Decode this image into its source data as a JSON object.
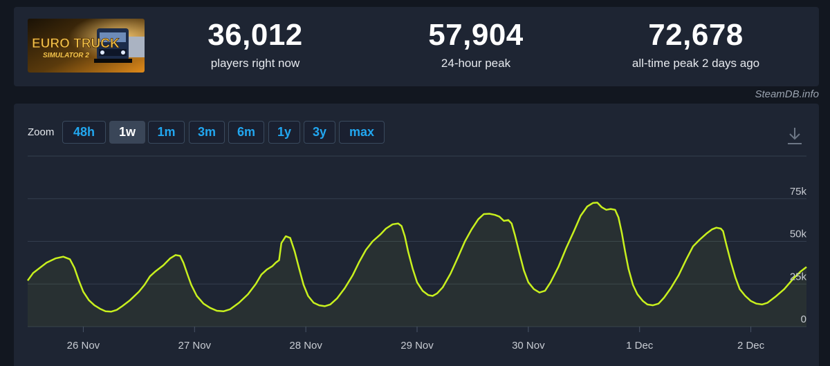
{
  "game": {
    "logo_text_line1": "EURO TRUCK",
    "logo_text_line2": "SIMULATOR 2"
  },
  "stats": [
    {
      "value": "36,012",
      "label": "players right now"
    },
    {
      "value": "57,904",
      "label": "24-hour peak"
    },
    {
      "value": "72,678",
      "label": "all-time peak 2 days ago"
    }
  ],
  "source_label": "SteamDB.info",
  "zoom": {
    "label": "Zoom",
    "options": [
      "48h",
      "1w",
      "1m",
      "3m",
      "6m",
      "1y",
      "3y",
      "max"
    ],
    "active": "1w"
  },
  "colors": {
    "line": "#c8f01e",
    "accent": "#22a7f0",
    "panel": "#1e2533",
    "background": "#121720"
  },
  "icons": {
    "download": "download-icon"
  },
  "chart_data": {
    "type": "line",
    "title": "",
    "xlabel": "",
    "ylabel": "",
    "x_ticks": [
      "26 Nov",
      "27 Nov",
      "28 Nov",
      "29 Nov",
      "30 Nov",
      "1 Dec",
      "2 Dec"
    ],
    "y_ticks": [
      "0",
      "25k",
      "50k",
      "75k"
    ],
    "ylim": [
      0,
      100000
    ],
    "x_unit": "days from 26 Nov 00:00",
    "xlim": [
      -0.5,
      6.5
    ],
    "grid": true,
    "series": [
      {
        "name": "",
        "points": [
          [
            -0.5,
            27000
          ],
          [
            -0.45,
            31500
          ],
          [
            -0.4,
            34000
          ],
          [
            -0.33,
            37500
          ],
          [
            -0.25,
            40000
          ],
          [
            -0.18,
            41000
          ],
          [
            -0.12,
            39500
          ],
          [
            -0.08,
            34500
          ],
          [
            -0.04,
            27000
          ],
          [
            0,
            20500
          ],
          [
            0.05,
            15500
          ],
          [
            0.1,
            12500
          ],
          [
            0.15,
            10500
          ],
          [
            0.2,
            9000
          ],
          [
            0.25,
            8800
          ],
          [
            0.3,
            9800
          ],
          [
            0.35,
            12000
          ],
          [
            0.42,
            15500
          ],
          [
            0.5,
            20500
          ],
          [
            0.55,
            24500
          ],
          [
            0.6,
            29500
          ],
          [
            0.65,
            32500
          ],
          [
            0.72,
            36000
          ],
          [
            0.78,
            40000
          ],
          [
            0.83,
            42000
          ],
          [
            0.87,
            41500
          ],
          [
            0.9,
            37500
          ],
          [
            0.94,
            30000
          ],
          [
            0.97,
            24500
          ],
          [
            1.02,
            18000
          ],
          [
            1.08,
            13500
          ],
          [
            1.14,
            11000
          ],
          [
            1.2,
            9300
          ],
          [
            1.26,
            9000
          ],
          [
            1.32,
            10200
          ],
          [
            1.4,
            14000
          ],
          [
            1.48,
            19000
          ],
          [
            1.55,
            25000
          ],
          [
            1.6,
            30500
          ],
          [
            1.65,
            33500
          ],
          [
            1.7,
            35500
          ],
          [
            1.73,
            37500
          ],
          [
            1.76,
            39000
          ],
          [
            1.78,
            49000
          ],
          [
            1.82,
            53000
          ],
          [
            1.86,
            52000
          ],
          [
            1.9,
            44000
          ],
          [
            1.94,
            34000
          ],
          [
            1.98,
            24500
          ],
          [
            2.02,
            18000
          ],
          [
            2.07,
            14000
          ],
          [
            2.12,
            12500
          ],
          [
            2.17,
            12000
          ],
          [
            2.22,
            13000
          ],
          [
            2.28,
            16500
          ],
          [
            2.35,
            22500
          ],
          [
            2.42,
            30000
          ],
          [
            2.48,
            38000
          ],
          [
            2.54,
            45000
          ],
          [
            2.6,
            50000
          ],
          [
            2.67,
            54000
          ],
          [
            2.72,
            57500
          ],
          [
            2.78,
            60000
          ],
          [
            2.83,
            60500
          ],
          [
            2.86,
            59000
          ],
          [
            2.89,
            53000
          ],
          [
            2.92,
            44000
          ],
          [
            2.96,
            34000
          ],
          [
            3.0,
            26000
          ],
          [
            3.05,
            21000
          ],
          [
            3.1,
            18500
          ],
          [
            3.14,
            18000
          ],
          [
            3.18,
            19500
          ],
          [
            3.23,
            23000
          ],
          [
            3.3,
            31000
          ],
          [
            3.37,
            41000
          ],
          [
            3.43,
            50000
          ],
          [
            3.49,
            57000
          ],
          [
            3.55,
            63000
          ],
          [
            3.6,
            66000
          ],
          [
            3.65,
            66200
          ],
          [
            3.7,
            65500
          ],
          [
            3.74,
            64500
          ],
          [
            3.78,
            62000
          ],
          [
            3.82,
            62500
          ],
          [
            3.85,
            60500
          ],
          [
            3.88,
            53500
          ],
          [
            3.92,
            43000
          ],
          [
            3.96,
            33000
          ],
          [
            4.0,
            26000
          ],
          [
            4.05,
            22000
          ],
          [
            4.1,
            20000
          ],
          [
            4.15,
            21000
          ],
          [
            4.2,
            26000
          ],
          [
            4.27,
            35000
          ],
          [
            4.34,
            46000
          ],
          [
            4.41,
            56000
          ],
          [
            4.47,
            65000
          ],
          [
            4.53,
            70500
          ],
          [
            4.58,
            72500
          ],
          [
            4.62,
            72700
          ],
          [
            4.66,
            70000
          ],
          [
            4.7,
            68500
          ],
          [
            4.74,
            69000
          ],
          [
            4.78,
            68500
          ],
          [
            4.81,
            64000
          ],
          [
            4.84,
            55000
          ],
          [
            4.87,
            44000
          ],
          [
            4.9,
            34000
          ],
          [
            4.94,
            24500
          ],
          [
            4.98,
            19000
          ],
          [
            5.03,
            15000
          ],
          [
            5.07,
            13000
          ],
          [
            5.12,
            12500
          ],
          [
            5.17,
            13500
          ],
          [
            5.22,
            17000
          ],
          [
            5.28,
            22500
          ],
          [
            5.35,
            30000
          ],
          [
            5.42,
            39500
          ],
          [
            5.48,
            47000
          ],
          [
            5.54,
            51000
          ],
          [
            5.6,
            54500
          ],
          [
            5.65,
            57000
          ],
          [
            5.69,
            58000
          ],
          [
            5.73,
            57500
          ],
          [
            5.75,
            56000
          ],
          [
            5.78,
            48000
          ],
          [
            5.82,
            38000
          ],
          [
            5.86,
            29000
          ],
          [
            5.9,
            22000
          ],
          [
            5.95,
            18000
          ],
          [
            6.0,
            15000
          ],
          [
            6.05,
            13500
          ],
          [
            6.1,
            13000
          ],
          [
            6.15,
            14000
          ],
          [
            6.22,
            17500
          ],
          [
            6.3,
            22000
          ],
          [
            6.38,
            28000
          ],
          [
            6.45,
            32500
          ],
          [
            6.5,
            35000
          ]
        ]
      }
    ]
  }
}
